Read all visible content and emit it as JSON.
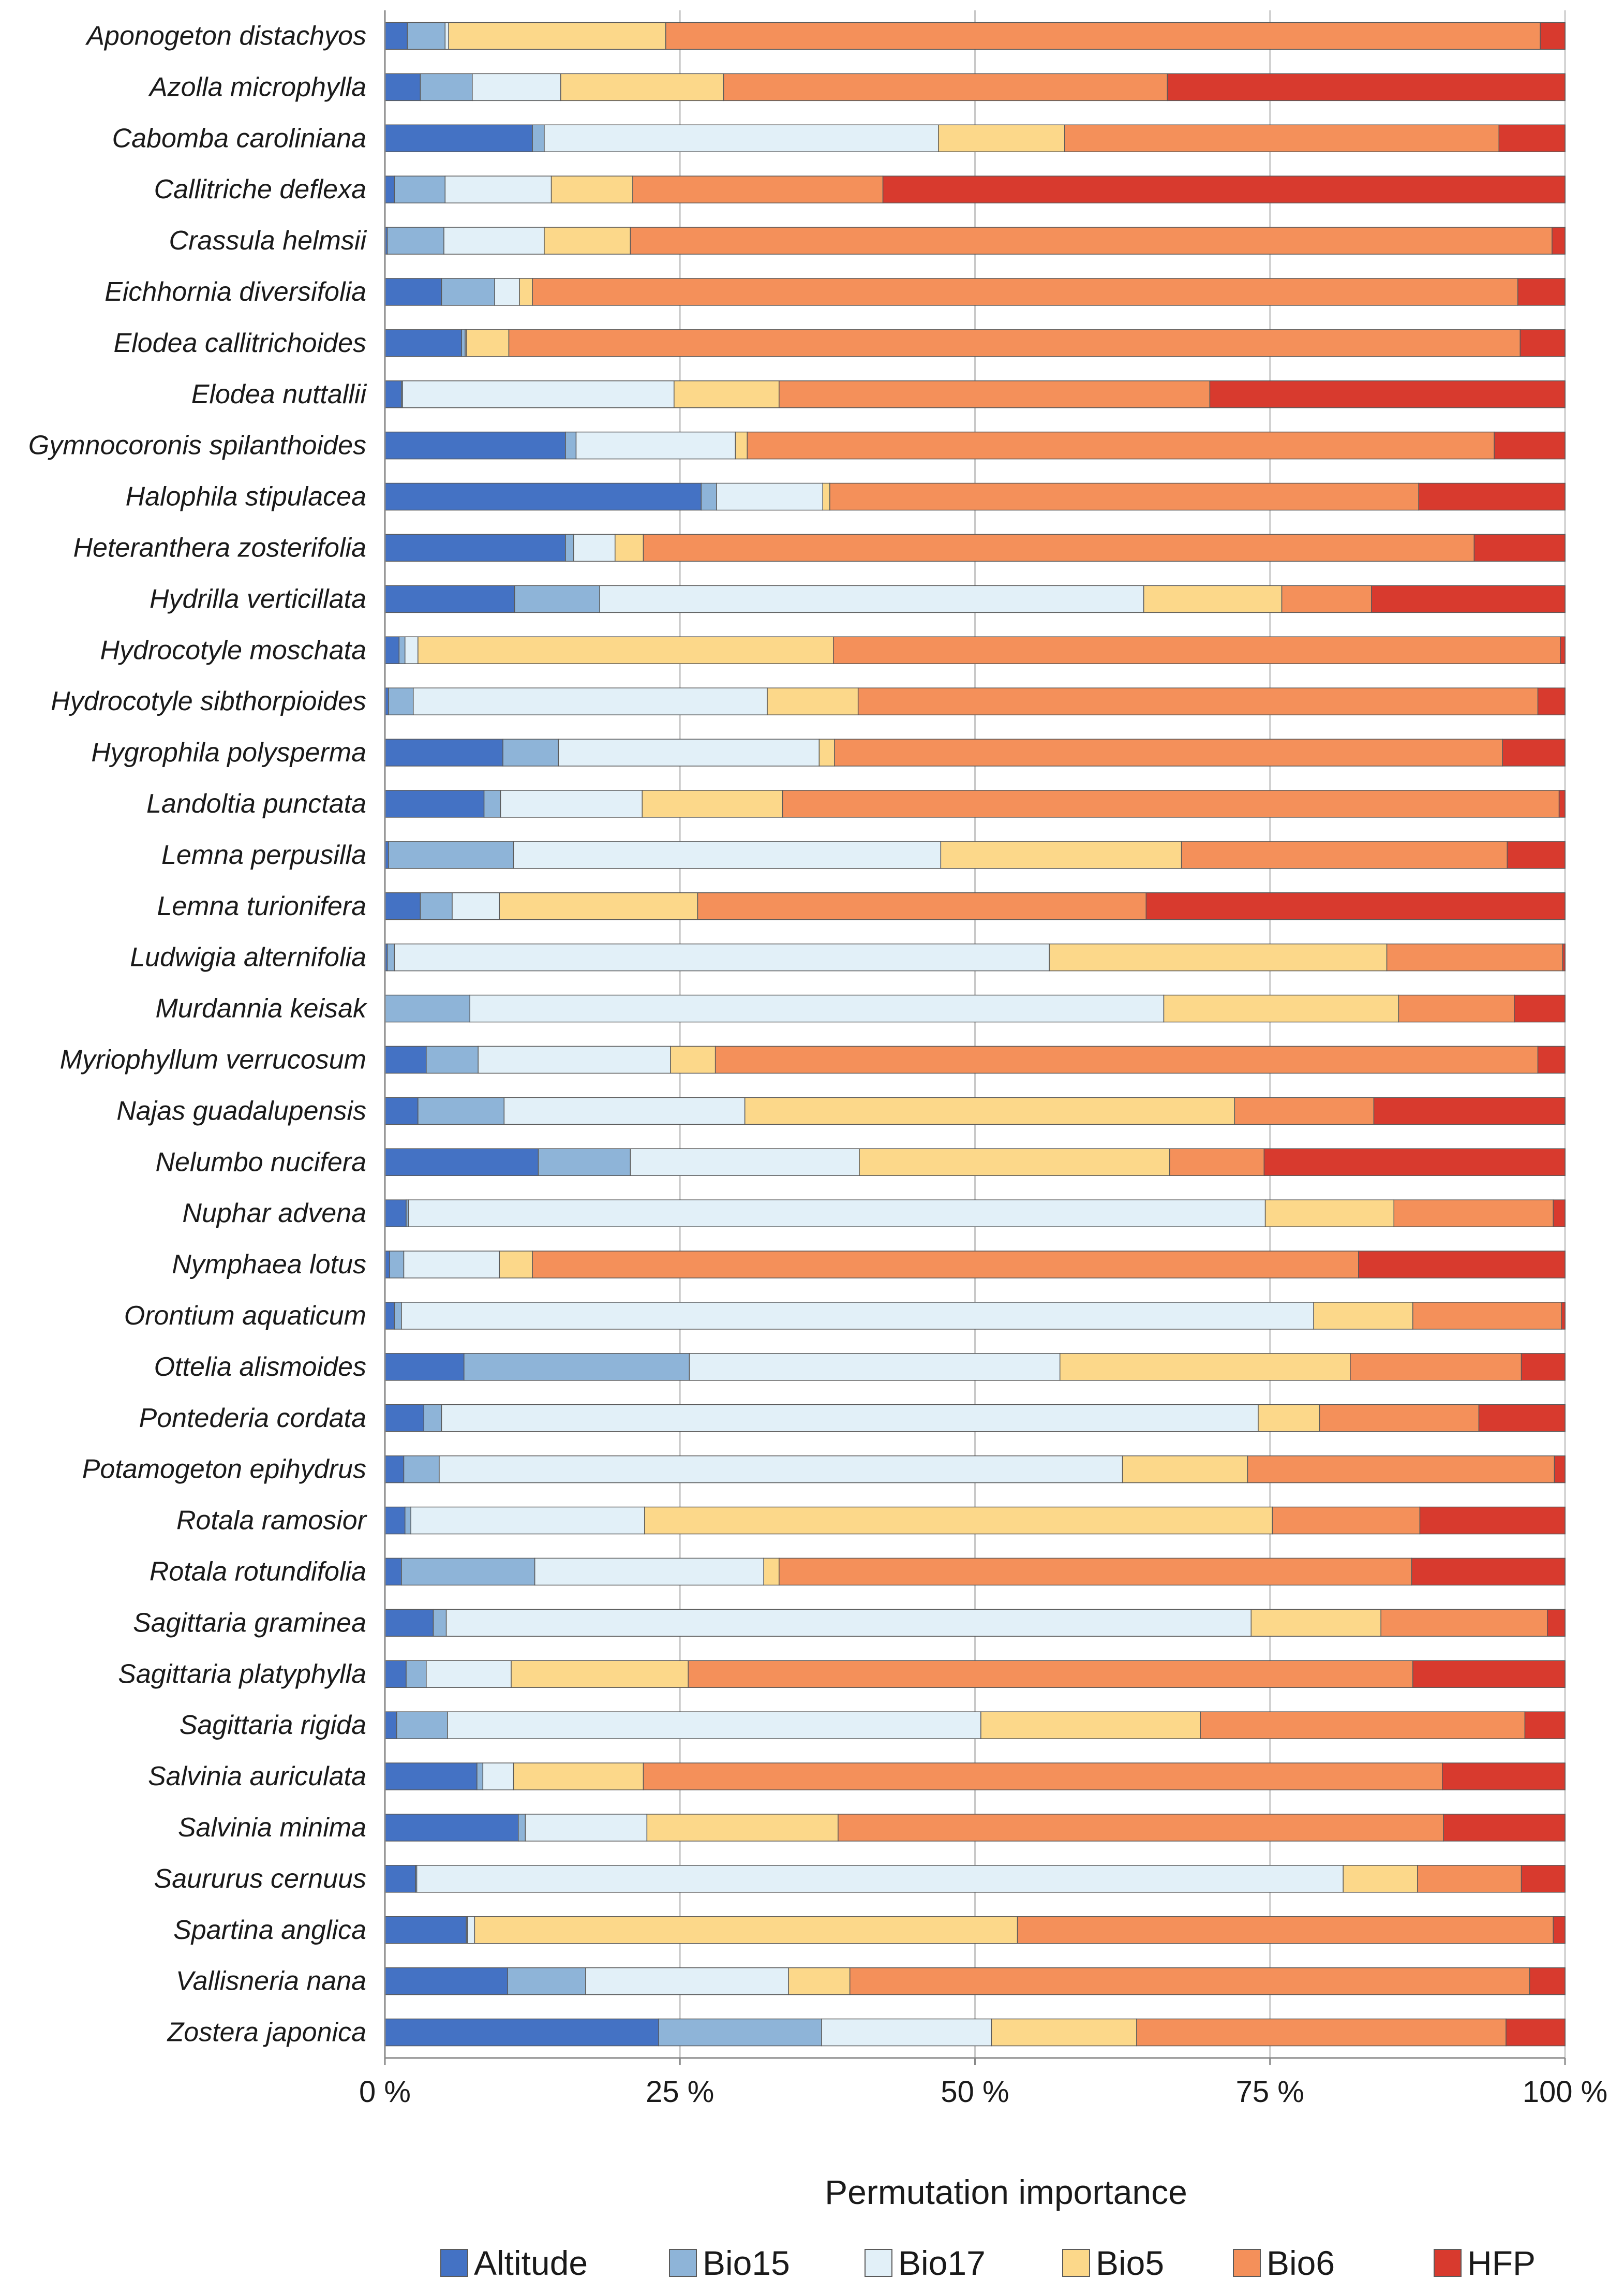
{
  "chart_data": {
    "type": "bar",
    "orientation": "horizontal",
    "stacked": true,
    "normalized": true,
    "title": "",
    "xlabel": "Permutation importance",
    "ylabel": "",
    "xlim": [
      0,
      100
    ],
    "xticks": [
      0,
      25,
      50,
      75,
      100
    ],
    "xtick_labels": [
      "0 %",
      "25 %",
      "50 %",
      "75 %",
      "100 %"
    ],
    "grid": true,
    "legend_position": "bottom",
    "categories": [
      "Aponogeton distachyos",
      "Azolla microphylla",
      "Cabomba caroliniana",
      "Callitriche deflexa",
      "Crassula helmsii",
      "Eichhornia diversifolia",
      "Elodea callitrichoides",
      "Elodea nuttallii",
      "Gymnocoronis spilanthoides",
      "Halophila stipulacea",
      "Heteranthera zosterifolia",
      "Hydrilla verticillata",
      "Hydrocotyle moschata",
      "Hydrocotyle sibthorpioides",
      "Hygrophila polysperma",
      "Landoltia punctata",
      "Lemna perpusilla",
      "Lemna turionifera",
      "Ludwigia alternifolia",
      "Murdannia keisak",
      "Myriophyllum verrucosum",
      "Najas guadalupensis",
      "Nelumbo nucifera",
      "Nuphar advena",
      "Nymphaea lotus",
      "Orontium aquaticum",
      "Ottelia alismoides",
      "Pontederia cordata",
      "Potamogeton epihydrus",
      "Rotala ramosior",
      "Rotala rotundifolia",
      "Sagittaria graminea",
      "Sagittaria platyphylla",
      "Sagittaria rigida",
      "Salvinia auriculata",
      "Salvinia minima",
      "Saururus cernuus",
      "Spartina anglica",
      "Vallisneria nana",
      "Zostera japonica"
    ],
    "series": [
      {
        "name": "Altitude",
        "color": "#4472c4",
        "values": [
          1.9,
          3.0,
          12.5,
          0.8,
          0.2,
          4.8,
          6.5,
          1.4,
          15.3,
          26.8,
          15.3,
          11.0,
          1.2,
          0.3,
          10.0,
          8.4,
          0.3,
          3.0,
          0.2,
          0.0,
          3.5,
          2.8,
          13.0,
          1.8,
          0.4,
          0.8,
          6.7,
          3.3,
          1.6,
          1.7,
          1.4,
          4.1,
          1.8,
          1.0,
          7.8,
          11.3,
          2.6,
          6.9,
          10.4,
          23.2
        ]
      },
      {
        "name": "Bio15",
        "color": "#8eb4d8",
        "values": [
          3.2,
          4.4,
          1.0,
          4.3,
          4.8,
          4.5,
          0.3,
          0.1,
          0.9,
          1.3,
          0.7,
          7.2,
          0.5,
          2.1,
          4.7,
          1.4,
          10.6,
          2.7,
          0.6,
          7.2,
          4.4,
          7.3,
          7.8,
          0.2,
          1.2,
          0.6,
          19.1,
          1.5,
          3.0,
          0.5,
          11.3,
          1.1,
          1.7,
          4.3,
          0.5,
          0.6,
          0.1,
          0.1,
          6.6,
          13.8
        ]
      },
      {
        "name": "Bio17",
        "color": "#e2f0f8",
        "values": [
          0.3,
          7.5,
          33.4,
          9.0,
          8.5,
          2.1,
          0.1,
          23.0,
          13.5,
          9.0,
          3.5,
          46.1,
          1.1,
          30.0,
          22.1,
          12.0,
          36.2,
          4.0,
          55.5,
          58.8,
          16.3,
          20.4,
          19.4,
          72.6,
          8.1,
          77.3,
          31.4,
          69.2,
          57.9,
          19.8,
          19.4,
          68.2,
          7.2,
          45.2,
          2.6,
          10.3,
          78.5,
          0.6,
          17.2,
          14.4
        ]
      },
      {
        "name": "Bio5",
        "color": "#fcd88a",
        "values": [
          18.4,
          13.8,
          10.7,
          6.9,
          7.3,
          1.1,
          3.6,
          8.9,
          1.0,
          0.6,
          2.4,
          11.7,
          35.2,
          7.7,
          1.3,
          11.9,
          20.4,
          16.8,
          28.6,
          19.9,
          3.8,
          41.5,
          26.3,
          10.9,
          2.8,
          8.4,
          24.6,
          5.2,
          10.6,
          53.2,
          1.3,
          11.0,
          15.0,
          18.6,
          11.0,
          16.2,
          6.3,
          46.0,
          5.2,
          12.3
        ]
      },
      {
        "name": "Bio6",
        "color": "#f4905a",
        "values": [
          74.1,
          37.6,
          36.8,
          21.2,
          78.1,
          83.5,
          85.7,
          36.5,
          63.3,
          49.9,
          70.4,
          7.6,
          61.6,
          57.6,
          56.6,
          65.8,
          27.6,
          38.0,
          14.9,
          9.8,
          69.7,
          11.8,
          8.0,
          13.5,
          70.0,
          12.6,
          14.5,
          13.5,
          26.0,
          12.5,
          53.6,
          14.1,
          61.4,
          27.5,
          67.7,
          51.3,
          8.8,
          45.4,
          57.6,
          31.3
        ]
      },
      {
        "name": "HFP",
        "color": "#d83a2e",
        "values": [
          2.1,
          33.7,
          5.6,
          57.8,
          1.1,
          4.0,
          3.8,
          30.1,
          6.0,
          12.4,
          7.7,
          16.4,
          0.4,
          2.3,
          5.3,
          0.5,
          4.9,
          35.5,
          0.2,
          4.3,
          2.3,
          16.2,
          25.5,
          1.0,
          17.5,
          0.3,
          3.7,
          7.3,
          0.9,
          12.3,
          13.0,
          1.5,
          12.9,
          3.4,
          10.4,
          10.3,
          3.7,
          1.0,
          3.0,
          5.0
        ]
      }
    ]
  }
}
